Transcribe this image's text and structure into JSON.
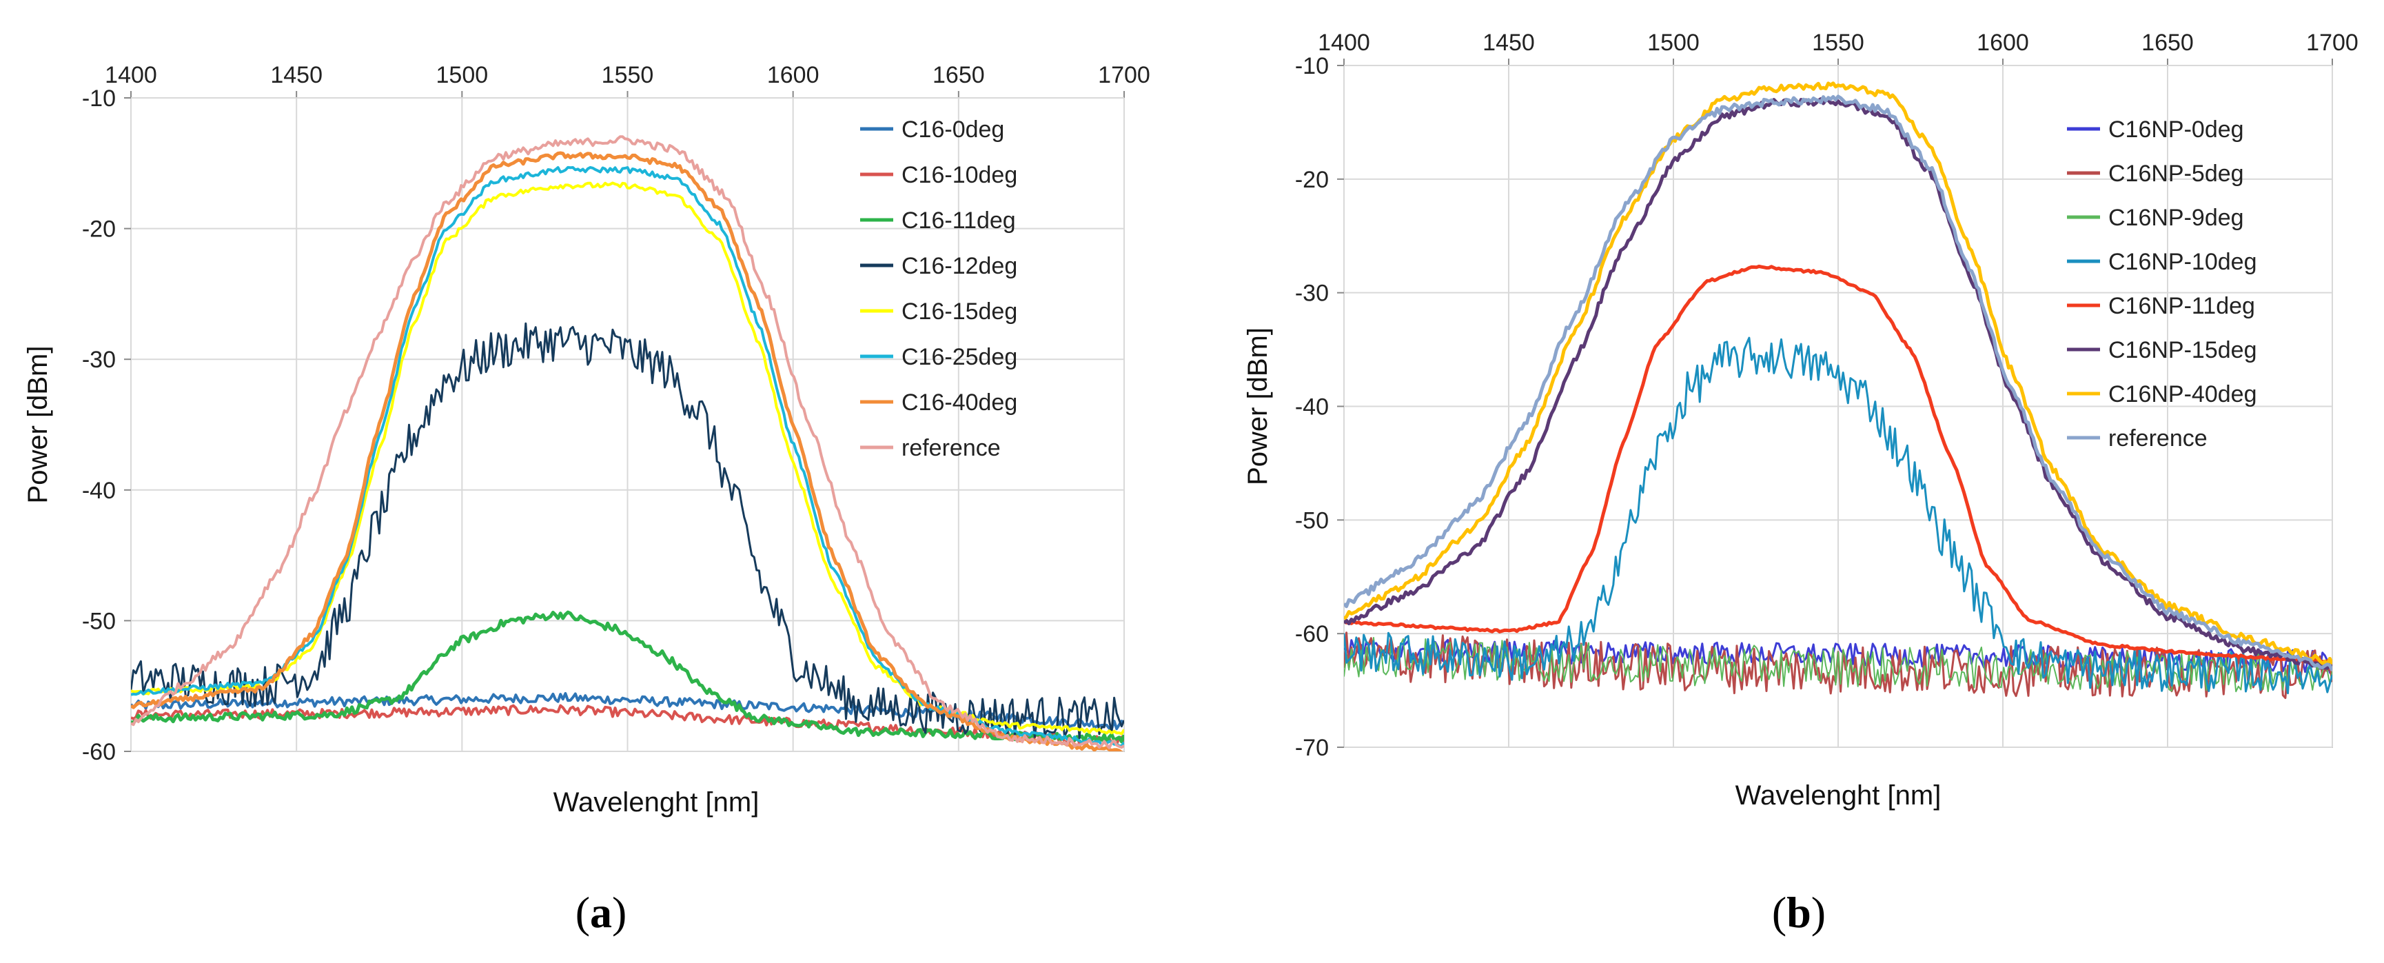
{
  "chart_data": [
    {
      "type": "line",
      "panel_caption": [
        "(",
        "a",
        ")"
      ],
      "xlabel": "Wavelenght [nm]",
      "ylabel": "Power [dBm]",
      "xlim": [
        1400,
        1700
      ],
      "ylim": [
        -60,
        -10
      ],
      "xticks": [
        1400,
        1450,
        1500,
        1550,
        1600,
        1650,
        1700
      ],
      "yticks": [
        -10,
        -20,
        -30,
        -40,
        -50,
        -60
      ],
      "x_axis_position": "top",
      "grid": true,
      "legend_position": "top-right",
      "series": [
        {
          "name": "C16-0deg",
          "color": "#2e75b6",
          "noise": 0.35,
          "width": 4,
          "points": [
            [
              1400,
              -56.5
            ],
            [
              1460,
              -56.2
            ],
            [
              1530,
              -55.9
            ],
            [
              1600,
              -56.6
            ],
            [
              1650,
              -57.2
            ],
            [
              1700,
              -58
            ]
          ]
        },
        {
          "name": "C16-10deg",
          "color": "#d9534f",
          "noise": 0.35,
          "width": 4,
          "points": [
            [
              1400,
              -57.2
            ],
            [
              1460,
              -57.1
            ],
            [
              1530,
              -56.8
            ],
            [
              1600,
              -57.8
            ],
            [
              1650,
              -58.5
            ],
            [
              1700,
              -59.2
            ]
          ]
        },
        {
          "name": "C16-11deg",
          "color": "#2db34a",
          "noise": 0.3,
          "width": 5,
          "points": [
            [
              1400,
              -57.5
            ],
            [
              1460,
              -57.2
            ],
            [
              1480,
              -56
            ],
            [
              1500,
              -51.5
            ],
            [
              1515,
              -50
            ],
            [
              1530,
              -49.5
            ],
            [
              1545,
              -50.5
            ],
            [
              1560,
              -52.5
            ],
            [
              1575,
              -55.5
            ],
            [
              1590,
              -57.5
            ],
            [
              1620,
              -58.5
            ],
            [
              1700,
              -59
            ]
          ]
        },
        {
          "name": "C16-12deg",
          "color": "#163b5c",
          "noise": 1.6,
          "width": 3,
          "points": [
            [
              1400,
              -54.5
            ],
            [
              1440,
              -55
            ],
            [
              1455,
              -54
            ],
            [
              1465,
              -49
            ],
            [
              1475,
              -42
            ],
            [
              1485,
              -36
            ],
            [
              1495,
              -31.5
            ],
            [
              1510,
              -29.3
            ],
            [
              1525,
              -28.6
            ],
            [
              1545,
              -29
            ],
            [
              1560,
              -30.5
            ],
            [
              1572,
              -34
            ],
            [
              1582,
              -40.5
            ],
            [
              1592,
              -48
            ],
            [
              1602,
              -53.5
            ],
            [
              1620,
              -56.5
            ],
            [
              1650,
              -57.2
            ],
            [
              1700,
              -57.5
            ]
          ]
        },
        {
          "name": "C16-15deg",
          "color": "#ffff00",
          "noise": 0.2,
          "width": 4,
          "points": [
            [
              1400,
              -55.5
            ],
            [
              1440,
              -55
            ],
            [
              1455,
              -52
            ],
            [
              1465,
              -46
            ],
            [
              1475,
              -37
            ],
            [
              1485,
              -27.5
            ],
            [
              1495,
              -21
            ],
            [
              1510,
              -17.5
            ],
            [
              1530,
              -16.7
            ],
            [
              1550,
              -16.7
            ],
            [
              1565,
              -17.5
            ],
            [
              1578,
              -21
            ],
            [
              1590,
              -29
            ],
            [
              1600,
              -38
            ],
            [
              1612,
              -47
            ],
            [
              1625,
              -53.5
            ],
            [
              1640,
              -56.5
            ],
            [
              1665,
              -58
            ],
            [
              1700,
              -58.5
            ]
          ]
        },
        {
          "name": "C16-25deg",
          "color": "#1cb5d9",
          "noise": 0.2,
          "width": 4,
          "points": [
            [
              1400,
              -55.5
            ],
            [
              1440,
              -54.8
            ],
            [
              1455,
              -51.5
            ],
            [
              1465,
              -45.5
            ],
            [
              1475,
              -36
            ],
            [
              1485,
              -26.5
            ],
            [
              1495,
              -20
            ],
            [
              1510,
              -16.3
            ],
            [
              1530,
              -15.5
            ],
            [
              1550,
              -15.5
            ],
            [
              1565,
              -16.2
            ],
            [
              1578,
              -19.7
            ],
            [
              1590,
              -27.5
            ],
            [
              1600,
              -36.5
            ],
            [
              1612,
              -46
            ],
            [
              1625,
              -53
            ],
            [
              1640,
              -56.5
            ],
            [
              1665,
              -58.5
            ],
            [
              1700,
              -59.5
            ]
          ]
        },
        {
          "name": "C16-40deg",
          "color": "#f28c38",
          "noise": 0.2,
          "width": 5,
          "points": [
            [
              1400,
              -56.5
            ],
            [
              1440,
              -55.2
            ],
            [
              1455,
              -51
            ],
            [
              1465,
              -45
            ],
            [
              1475,
              -35
            ],
            [
              1485,
              -25.5
            ],
            [
              1495,
              -19
            ],
            [
              1510,
              -15.2
            ],
            [
              1530,
              -14.4
            ],
            [
              1550,
              -14.5
            ],
            [
              1565,
              -15.2
            ],
            [
              1578,
              -18.5
            ],
            [
              1590,
              -26
            ],
            [
              1600,
              -35
            ],
            [
              1612,
              -45
            ],
            [
              1625,
              -52.5
            ],
            [
              1640,
              -56.5
            ],
            [
              1665,
              -59
            ],
            [
              1700,
              -60
            ]
          ]
        },
        {
          "name": "reference",
          "color": "#e8a09c",
          "noise": 0.3,
          "width": 4,
          "points": [
            [
              1400,
              -58
            ],
            [
              1415,
              -55
            ],
            [
              1430,
              -52
            ],
            [
              1445,
              -46
            ],
            [
              1455,
              -40.5
            ],
            [
              1465,
              -34
            ],
            [
              1475,
              -28
            ],
            [
              1485,
              -22.5
            ],
            [
              1495,
              -18
            ],
            [
              1510,
              -14.5
            ],
            [
              1530,
              -13.5
            ],
            [
              1550,
              -13.2
            ],
            [
              1565,
              -14
            ],
            [
              1580,
              -17.5
            ],
            [
              1592,
              -25
            ],
            [
              1605,
              -35
            ],
            [
              1618,
              -44.5
            ],
            [
              1630,
              -51.5
            ],
            [
              1645,
              -56.5
            ],
            [
              1665,
              -59
            ],
            [
              1700,
              -59.5
            ]
          ]
        }
      ]
    },
    {
      "type": "line",
      "panel_caption": [
        "(",
        "b",
        ")"
      ],
      "xlabel": "Wavelenght [nm]",
      "ylabel": "Power [dBm]",
      "xlim": [
        1400,
        1700
      ],
      "ylim": [
        -70,
        -10
      ],
      "xticks": [
        1400,
        1450,
        1500,
        1550,
        1600,
        1650,
        1700
      ],
      "yticks": [
        -10,
        -20,
        -30,
        -40,
        -50,
        -60,
        -70
      ],
      "x_axis_position": "top",
      "grid": true,
      "legend_position": "top-right",
      "series": [
        {
          "name": "C16NP-0deg",
          "color": "#3d3dd6",
          "noise": 1.0,
          "width": 3,
          "points": [
            [
              1400,
              -61.5
            ],
            [
              1500,
              -61.7
            ],
            [
              1600,
              -62
            ],
            [
              1700,
              -62.5
            ]
          ]
        },
        {
          "name": "C16NP-5deg",
          "color": "#b84b4b",
          "noise": 2.2,
          "width": 3,
          "points": [
            [
              1400,
              -62
            ],
            [
              1500,
              -63
            ],
            [
              1600,
              -63.3
            ],
            [
              1700,
              -63.5
            ]
          ]
        },
        {
          "name": "C16NP-9deg",
          "color": "#5bb85b",
          "noise": 1.8,
          "width": 2,
          "points": [
            [
              1400,
              -62
            ],
            [
              1500,
              -62.8
            ],
            [
              1600,
              -63
            ],
            [
              1700,
              -63.5
            ]
          ]
        },
        {
          "name": "C16NP-10deg",
          "color": "#1a8fbf",
          "noise": 1.8,
          "width": 3,
          "points": [
            [
              1400,
              -61.5
            ],
            [
              1460,
              -62.5
            ],
            [
              1475,
              -60
            ],
            [
              1485,
              -52
            ],
            [
              1495,
              -44
            ],
            [
              1505,
              -38.5
            ],
            [
              1515,
              -36
            ],
            [
              1530,
              -35.5
            ],
            [
              1545,
              -36.5
            ],
            [
              1558,
              -39
            ],
            [
              1570,
              -44.5
            ],
            [
              1582,
              -51.5
            ],
            [
              1595,
              -58
            ],
            [
              1605,
              -62
            ],
            [
              1630,
              -63.2
            ],
            [
              1700,
              -63.5
            ]
          ]
        },
        {
          "name": "C16NP-11deg",
          "color": "#f23b1e",
          "noise": 0.1,
          "width": 5,
          "points": [
            [
              1400,
              -59
            ],
            [
              1450,
              -59.8
            ],
            [
              1465,
              -59
            ],
            [
              1475,
              -53
            ],
            [
              1485,
              -43
            ],
            [
              1495,
              -34.5
            ],
            [
              1510,
              -29
            ],
            [
              1525,
              -27.7
            ],
            [
              1545,
              -28.2
            ],
            [
              1560,
              -30
            ],
            [
              1572,
              -35
            ],
            [
              1585,
              -45
            ],
            [
              1595,
              -54
            ],
            [
              1608,
              -58.8
            ],
            [
              1630,
              -61
            ],
            [
              1660,
              -61.8
            ],
            [
              1700,
              -62.5
            ]
          ]
        },
        {
          "name": "C16NP-15deg",
          "color": "#5b3a75",
          "noise": 0.3,
          "width": 5,
          "points": [
            [
              1400,
              -59
            ],
            [
              1420,
              -56.5
            ],
            [
              1440,
              -52.5
            ],
            [
              1455,
              -46
            ],
            [
              1470,
              -36
            ],
            [
              1485,
              -26
            ],
            [
              1500,
              -18.5
            ],
            [
              1515,
              -14.5
            ],
            [
              1530,
              -13.3
            ],
            [
              1550,
              -13.2
            ],
            [
              1565,
              -14.5
            ],
            [
              1578,
              -19.5
            ],
            [
              1590,
              -28.5
            ],
            [
              1602,
              -38.5
            ],
            [
              1615,
              -47
            ],
            [
              1630,
              -53.5
            ],
            [
              1650,
              -58.5
            ],
            [
              1675,
              -61.5
            ],
            [
              1700,
              -63
            ]
          ]
        },
        {
          "name": "C16NP-40deg",
          "color": "#ffc000",
          "noise": 0.3,
          "width": 5,
          "points": [
            [
              1400,
              -58.5
            ],
            [
              1420,
              -55.5
            ],
            [
              1440,
              -50.5
            ],
            [
              1455,
              -43.5
            ],
            [
              1470,
              -33.5
            ],
            [
              1485,
              -23.5
            ],
            [
              1500,
              -16.5
            ],
            [
              1515,
              -13
            ],
            [
              1530,
              -12
            ],
            [
              1550,
              -11.8
            ],
            [
              1565,
              -12.5
            ],
            [
              1578,
              -17
            ],
            [
              1590,
              -26
            ],
            [
              1602,
              -36.5
            ],
            [
              1615,
              -45.5
            ],
            [
              1630,
              -52.5
            ],
            [
              1650,
              -57.5
            ],
            [
              1675,
              -60.5
            ],
            [
              1700,
              -62.5
            ]
          ]
        },
        {
          "name": "reference",
          "color": "#8aa4cc",
          "noise": 0.3,
          "width": 5,
          "points": [
            [
              1400,
              -57.5
            ],
            [
              1420,
              -54
            ],
            [
              1440,
              -48.5
            ],
            [
              1455,
              -41.5
            ],
            [
              1470,
              -32
            ],
            [
              1485,
              -22.5
            ],
            [
              1500,
              -16.5
            ],
            [
              1515,
              -13.8
            ],
            [
              1530,
              -13.2
            ],
            [
              1550,
              -13
            ],
            [
              1565,
              -14
            ],
            [
              1578,
              -19
            ],
            [
              1590,
              -28
            ],
            [
              1602,
              -38
            ],
            [
              1615,
              -46.5
            ],
            [
              1630,
              -53
            ],
            [
              1650,
              -58
            ],
            [
              1675,
              -61
            ],
            [
              1700,
              -63
            ]
          ]
        }
      ]
    }
  ]
}
